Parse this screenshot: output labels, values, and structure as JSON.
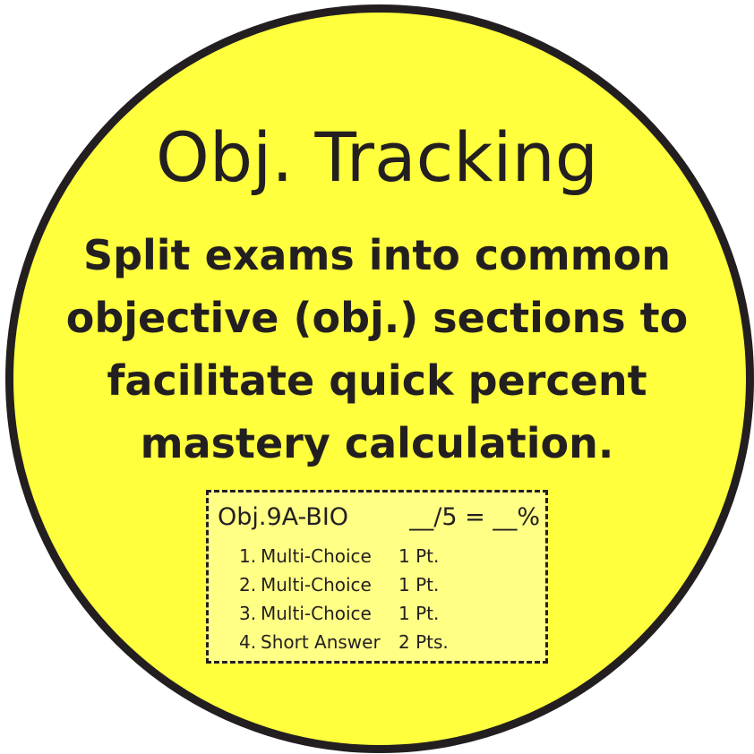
{
  "badge": {
    "title": "Obj. Tracking",
    "description_lines": [
      "Split exams into common",
      "objective (obj.) sections to",
      "facilitate quick percent",
      "mastery calculation."
    ],
    "colors": {
      "fill": "#ffff3d",
      "card_fill": "#ffff86",
      "ink": "#231f20"
    }
  },
  "example_card": {
    "objective_code": "Obj.9A-BIO",
    "score_template": "__/5 = __%",
    "items": [
      {
        "number": "1.",
        "type": "Multi-Choice",
        "points": "1 Pt."
      },
      {
        "number": "2.",
        "type": "Multi-Choice",
        "points": "1 Pt."
      },
      {
        "number": "3.",
        "type": "Multi-Choice",
        "points": "1 Pt."
      },
      {
        "number": "4.",
        "type": "Short Answer",
        "points": "2 Pts."
      }
    ]
  }
}
